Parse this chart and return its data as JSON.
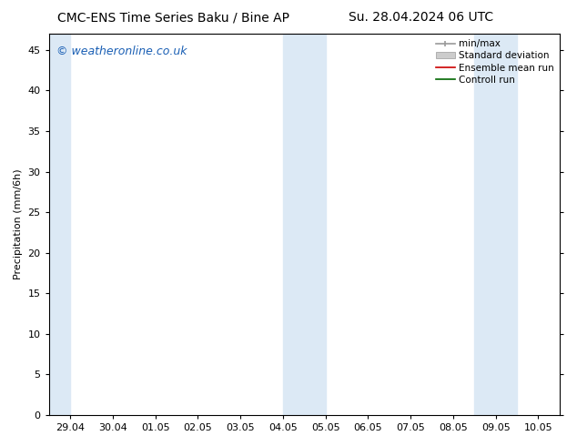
{
  "title_left": "CMC-ENS Time Series Baku / Bine AP",
  "title_right": "Su. 28.04.2024 06 UTC",
  "ylabel": "Precipitation (mm/6h)",
  "watermark": "© weatheronline.co.uk",
  "xtick_labels": [
    "29.04",
    "30.04",
    "01.05",
    "02.05",
    "03.05",
    "04.05",
    "05.05",
    "06.05",
    "07.05",
    "08.05",
    "09.05",
    "10.05"
  ],
  "xlim": [
    -0.5,
    11.5
  ],
  "ylim": [
    0,
    47
  ],
  "yticks": [
    0,
    5,
    10,
    15,
    20,
    25,
    30,
    35,
    40,
    45
  ],
  "shaded_columns": [
    {
      "x_start": -0.5,
      "x_end": 0.0
    },
    {
      "x_start": 5.0,
      "x_end": 5.5
    },
    {
      "x_start": 5.5,
      "x_end": 6.0
    },
    {
      "x_start": 9.5,
      "x_end": 10.0
    },
    {
      "x_start": 10.0,
      "x_end": 10.5
    }
  ],
  "shade_color": "#dce9f5",
  "background_color": "#ffffff",
  "title_fontsize": 10,
  "watermark_color": "#1a5fb4",
  "watermark_fontsize": 9,
  "axis_label_fontsize": 8,
  "tick_fontsize": 8,
  "legend_fontsize": 7.5
}
